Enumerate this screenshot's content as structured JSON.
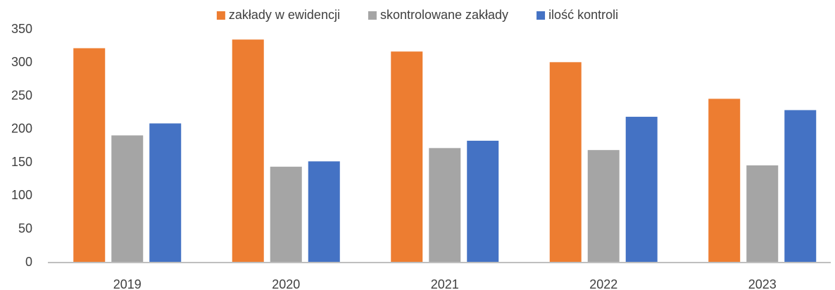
{
  "chart_data": {
    "type": "bar",
    "categories": [
      "2019",
      "2020",
      "2021",
      "2022",
      "2023"
    ],
    "series": [
      {
        "name": "zakłady w ewidencji",
        "color": "#ed7d31",
        "values": [
          322,
          335,
          317,
          301,
          246
        ]
      },
      {
        "name": "skontrolowane zakłady",
        "color": "#a5a5a5",
        "values": [
          191,
          144,
          172,
          169,
          146
        ]
      },
      {
        "name": "ilość kontroli",
        "color": "#4472c4",
        "values": [
          209,
          152,
          183,
          219,
          229
        ]
      }
    ],
    "ylim": [
      0,
      350
    ],
    "yticks": [
      0,
      50,
      100,
      150,
      200,
      250,
      300,
      350
    ],
    "grid": false,
    "legend": "top"
  }
}
